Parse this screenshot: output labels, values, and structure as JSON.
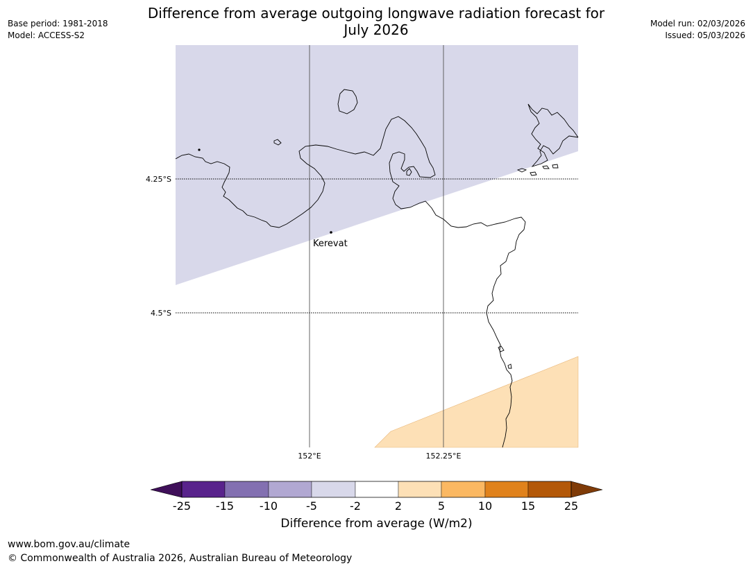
{
  "header": {
    "base_period": "Base period: 1981-2018",
    "model": "Model: ACCESS-S2",
    "model_run": "Model run: 02/03/2026",
    "issued": "Issued: 05/03/2026",
    "title_line1": "Difference from average outgoing longwave radiation forecast for",
    "title_line2": "July 2026"
  },
  "map": {
    "lat_labels": [
      "4.25°S",
      "4.5°S"
    ],
    "lon_labels": [
      "152°E",
      "152.25°E"
    ],
    "place_label": "Kerevat",
    "colors": {
      "minus5_to_minus2": "#d8d8ea",
      "plus2_to_plus5": "#fde0b6",
      "coastline": "#000000"
    }
  },
  "colorbar": {
    "label": "Difference from average (W/m2)",
    "ticks": [
      "-25",
      "-15",
      "-10",
      "-5",
      "-2",
      "2",
      "5",
      "10",
      "15",
      "25"
    ],
    "colors": [
      "#3f0f59",
      "#59238c",
      "#8370b1",
      "#b1a8d2",
      "#d8d8ea",
      "#ffffff",
      "#fde0b6",
      "#fbb862",
      "#e0821c",
      "#b35808",
      "#7f3b08"
    ]
  },
  "footer": {
    "url": "www.bom.gov.au/climate",
    "copyright": "© Commonwealth of Australia 2026, Australian Bureau of Meteorology"
  }
}
